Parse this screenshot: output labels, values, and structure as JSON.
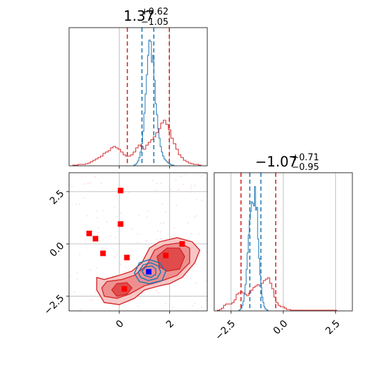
{
  "colors": {
    "posterior_a": "#d62728",
    "posterior_b": "#1f77b4",
    "marker_red": "#ff0000",
    "marker_blue": "#0000ff",
    "grid": "#b0b0b0"
  },
  "chart_data": [
    {
      "id": "hist-param-1",
      "type": "histogram",
      "title": {
        "main": "1.37",
        "sup": "+0.62",
        "sub": "−1.05"
      },
      "xlim": [
        -2.0,
        3.5
      ],
      "ylim": [
        0,
        1.0
      ],
      "grid": true,
      "series": [
        {
          "name": "",
          "color_key": "posterior_a",
          "bin_width": 0.1,
          "x": [
            -1.8,
            -1.7,
            -1.6,
            -1.5,
            -1.4,
            -1.3,
            -1.2,
            -1.1,
            -1.0,
            -0.9,
            -0.8,
            -0.7,
            -0.6,
            -0.5,
            -0.4,
            -0.3,
            -0.2,
            -0.1,
            0.0,
            0.1,
            0.2,
            0.3,
            0.4,
            0.5,
            0.6,
            0.7,
            0.8,
            0.9,
            1.0,
            1.1,
            1.2,
            1.3,
            1.4,
            1.5,
            1.6,
            1.7,
            1.8,
            1.9,
            2.0,
            2.1,
            2.2,
            2.3,
            2.4,
            2.5,
            2.6,
            2.7,
            2.8,
            2.9,
            3.0,
            3.1,
            3.2
          ],
          "values": [
            0.005,
            0.005,
            0.01,
            0.01,
            0.01,
            0.015,
            0.02,
            0.03,
            0.04,
            0.05,
            0.06,
            0.07,
            0.09,
            0.1,
            0.11,
            0.13,
            0.14,
            0.13,
            0.12,
            0.1,
            0.08,
            0.07,
            0.07,
            0.08,
            0.1,
            0.13,
            0.15,
            0.14,
            0.12,
            0.15,
            0.17,
            0.19,
            0.21,
            0.24,
            0.27,
            0.31,
            0.33,
            0.3,
            0.26,
            0.2,
            0.16,
            0.12,
            0.08,
            0.06,
            0.04,
            0.03,
            0.02,
            0.015,
            0.01,
            0.01,
            0.005
          ]
        },
        {
          "name": "",
          "color_key": "posterior_b",
          "bin_width": 0.05,
          "x": [
            0.6,
            0.65,
            0.7,
            0.75,
            0.8,
            0.85,
            0.9,
            0.95,
            1.0,
            1.05,
            1.1,
            1.15,
            1.2,
            1.25,
            1.3,
            1.35,
            1.4,
            1.45,
            1.5,
            1.55,
            1.6,
            1.65,
            1.7,
            1.75,
            1.8,
            1.85,
            1.9,
            1.95,
            2.0,
            2.05,
            2.1,
            2.15
          ],
          "values": [
            0.005,
            0.01,
            0.02,
            0.035,
            0.06,
            0.1,
            0.16,
            0.25,
            0.38,
            0.52,
            0.66,
            0.8,
            0.91,
            0.9,
            0.75,
            0.8,
            0.62,
            0.45,
            0.37,
            0.27,
            0.2,
            0.14,
            0.1,
            0.07,
            0.05,
            0.04,
            0.03,
            0.02,
            0.015,
            0.01,
            0.005,
            0.005
          ]
        }
      ],
      "quantile_lines": [
        {
          "color_key": "posterior_a",
          "x": [
            0.32,
            1.99
          ]
        },
        {
          "color_key": "posterior_b",
          "x": [
            0.9,
            1.37
          ]
        }
      ]
    },
    {
      "id": "hist-param-2",
      "type": "histogram",
      "title": {
        "main": "−1.07",
        "sup": "+0.71",
        "sub": "−0.95"
      },
      "xlim": [
        -3.3,
        3.3
      ],
      "ylim": [
        0,
        1.0
      ],
      "grid": true,
      "xticks": [
        -2.5,
        0.0,
        2.5
      ],
      "xtick_labels": [
        "−2.5",
        "0.0",
        "2.5"
      ],
      "series": [
        {
          "name": "",
          "color_key": "posterior_a",
          "bin_width": 0.1,
          "x": [
            -3.1,
            -3.0,
            -2.9,
            -2.8,
            -2.7,
            -2.6,
            -2.5,
            -2.4,
            -2.3,
            -2.2,
            -2.1,
            -2.0,
            -1.9,
            -1.8,
            -1.7,
            -1.6,
            -1.5,
            -1.4,
            -1.3,
            -1.2,
            -1.1,
            -1.0,
            -0.9,
            -0.8,
            -0.7,
            -0.6,
            -0.5,
            -0.4,
            -0.3,
            -0.2,
            -0.1,
            0.0,
            0.1,
            0.2,
            0.3,
            0.4,
            0.5,
            0.6,
            0.7,
            2.5
          ],
          "values": [
            0.005,
            0.01,
            0.02,
            0.04,
            0.05,
            0.05,
            0.05,
            0.06,
            0.08,
            0.12,
            0.13,
            0.14,
            0.13,
            0.12,
            0.11,
            0.13,
            0.15,
            0.17,
            0.18,
            0.19,
            0.18,
            0.2,
            0.22,
            0.23,
            0.24,
            0.2,
            0.16,
            0.1,
            0.06,
            0.04,
            0.03,
            0.03,
            0.02,
            0.01,
            0.01,
            0.005,
            0.005,
            0.005,
            0.005,
            0.005
          ]
        },
        {
          "name": "",
          "color_key": "posterior_b",
          "bin_width": 0.05,
          "x": [
            -2.1,
            -2.05,
            -2.0,
            -1.95,
            -1.9,
            -1.85,
            -1.8,
            -1.75,
            -1.7,
            -1.65,
            -1.6,
            -1.55,
            -1.5,
            -1.45,
            -1.4,
            -1.35,
            -1.3,
            -1.25,
            -1.2,
            -1.15,
            -1.1,
            -1.05,
            -1.0,
            -0.95,
            -0.9,
            -0.85,
            -0.8,
            -0.75
          ],
          "values": [
            0.005,
            0.01,
            0.02,
            0.04,
            0.07,
            0.12,
            0.19,
            0.3,
            0.42,
            0.55,
            0.66,
            0.72,
            0.79,
            0.78,
            0.76,
            0.9,
            0.73,
            0.75,
            0.52,
            0.38,
            0.26,
            0.17,
            0.1,
            0.06,
            0.03,
            0.015,
            0.01,
            0.005
          ]
        }
      ],
      "quantile_lines": [
        {
          "color_key": "posterior_a",
          "x": [
            -2.02,
            -0.36
          ]
        },
        {
          "color_key": "posterior_b",
          "x": [
            -1.6,
            -1.07
          ]
        }
      ]
    },
    {
      "id": "scatter-2d",
      "type": "scatter",
      "xlim": [
        -2.0,
        3.5
      ],
      "ylim": [
        -3.2,
        3.4
      ],
      "grid": true,
      "xticks": [
        0,
        2
      ],
      "xtick_labels": [
        "0",
        "2"
      ],
      "yticks": [
        -2.5,
        0.0,
        2.5
      ],
      "ytick_labels": [
        "−2.5",
        "0.0",
        "2.5"
      ],
      "contours_a": [
        [
          [
            -0.9,
            -1.6
          ],
          [
            -0.6,
            -1.7
          ],
          [
            0.0,
            -1.5
          ],
          [
            0.5,
            -1.3
          ],
          [
            0.9,
            -0.9
          ],
          [
            1.2,
            -0.2
          ],
          [
            1.6,
            0.1
          ],
          [
            2.3,
            0.3
          ],
          [
            2.9,
            0.1
          ],
          [
            3.2,
            -0.3
          ],
          [
            3.0,
            -0.9
          ],
          [
            2.5,
            -1.6
          ],
          [
            2.0,
            -1.9
          ],
          [
            1.6,
            -2.0
          ],
          [
            1.0,
            -2.2
          ],
          [
            0.6,
            -2.6
          ],
          [
            0.0,
            -2.9
          ],
          [
            -0.6,
            -2.8
          ],
          [
            -0.9,
            -2.2
          ]
        ],
        [
          [
            -0.5,
            -1.8
          ],
          [
            0.1,
            -1.7
          ],
          [
            0.6,
            -1.5
          ],
          [
            1.1,
            -1.0
          ],
          [
            1.4,
            -0.3
          ],
          [
            1.8,
            -0.05
          ],
          [
            2.4,
            0.05
          ],
          [
            2.8,
            -0.2
          ],
          [
            2.8,
            -0.9
          ],
          [
            2.3,
            -1.5
          ],
          [
            1.6,
            -1.8
          ],
          [
            1.0,
            -2.0
          ],
          [
            0.4,
            -2.4
          ],
          [
            -0.1,
            -2.6
          ],
          [
            -0.6,
            -2.5
          ],
          [
            -0.7,
            -2.1
          ]
        ],
        [
          [
            -0.1,
            -1.9
          ],
          [
            0.3,
            -1.85
          ],
          [
            0.5,
            -2.1
          ],
          [
            0.3,
            -2.4
          ],
          [
            -0.1,
            -2.5
          ],
          [
            -0.3,
            -2.2
          ]
        ],
        [
          [
            1.5,
            -0.6
          ],
          [
            1.9,
            -0.2
          ],
          [
            2.4,
            -0.2
          ],
          [
            2.6,
            -0.6
          ],
          [
            2.4,
            -1.2
          ],
          [
            1.9,
            -1.3
          ],
          [
            1.6,
            -1.1
          ]
        ]
      ],
      "contours_b": [
        [
          [
            0.6,
            -1.4
          ],
          [
            0.8,
            -0.9
          ],
          [
            1.2,
            -0.75
          ],
          [
            1.6,
            -0.9
          ],
          [
            1.85,
            -1.3
          ],
          [
            1.7,
            -1.75
          ],
          [
            1.2,
            -1.9
          ],
          [
            0.8,
            -1.8
          ]
        ],
        [
          [
            0.75,
            -1.35
          ],
          [
            0.95,
            -1.0
          ],
          [
            1.25,
            -0.9
          ],
          [
            1.55,
            -1.05
          ],
          [
            1.65,
            -1.35
          ],
          [
            1.5,
            -1.65
          ],
          [
            1.15,
            -1.75
          ],
          [
            0.85,
            -1.6
          ]
        ],
        [
          [
            0.9,
            -1.3
          ],
          [
            1.05,
            -1.1
          ],
          [
            1.3,
            -1.05
          ],
          [
            1.45,
            -1.2
          ],
          [
            1.45,
            -1.45
          ],
          [
            1.25,
            -1.6
          ],
          [
            1.0,
            -1.5
          ]
        ]
      ],
      "markers_red": [
        {
          "x": 0.05,
          "y": 2.55
        },
        {
          "x": 0.05,
          "y": 0.95
        },
        {
          "x": -1.2,
          "y": 0.5
        },
        {
          "x": -0.95,
          "y": 0.25
        },
        {
          "x": -0.65,
          "y": -0.45
        },
        {
          "x": 0.3,
          "y": -0.65
        },
        {
          "x": 1.85,
          "y": -0.55
        },
        {
          "x": 2.5,
          "y": 0.0
        },
        {
          "x": 0.2,
          "y": -2.15
        }
      ],
      "marker_blue": {
        "x": 1.17,
        "y": -1.33
      }
    }
  ]
}
